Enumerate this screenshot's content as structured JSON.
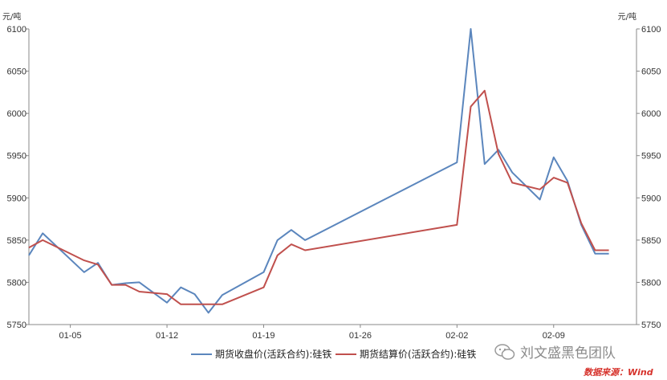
{
  "chart_data": {
    "type": "line",
    "ylabel_left": "元/吨",
    "ylabel_right": "元/吨",
    "ylim": [
      5750,
      6100
    ],
    "yticks": [
      5750,
      5800,
      5850,
      5900,
      5950,
      6000,
      6050,
      6100
    ],
    "x_tick_labels": [
      "01-05",
      "01-12",
      "01-19",
      "01-26",
      "02-02",
      "02-09"
    ],
    "x_tick_positions": [
      5,
      12,
      19,
      26,
      33,
      40
    ],
    "xlim": [
      2,
      46
    ],
    "grid": false,
    "legend_position": "bottom",
    "series": [
      {
        "name": "期货收盘价(活跃合约):硅铁",
        "color": "#5b86bd",
        "x": [
          2,
          3,
          6,
          7,
          8,
          9,
          10,
          12,
          13,
          14,
          15,
          16,
          19,
          20,
          21,
          22,
          33,
          34,
          35,
          36,
          37,
          39,
          40,
          41,
          42,
          43,
          44
        ],
        "y": [
          5832,
          5858,
          5812,
          5823,
          5797,
          5799,
          5800,
          5776,
          5794,
          5786,
          5764,
          5785,
          5812,
          5850,
          5862,
          5850,
          5942,
          6100,
          5940,
          5957,
          5930,
          5898,
          5948,
          5920,
          5868,
          5834,
          5834
        ]
      },
      {
        "name": "期货结算价(活跃合约):硅铁",
        "color": "#c0504d",
        "x": [
          2,
          3,
          6,
          7,
          8,
          9,
          10,
          12,
          13,
          14,
          15,
          16,
          19,
          20,
          21,
          22,
          33,
          34,
          35,
          36,
          37,
          39,
          40,
          41,
          42,
          43,
          44
        ],
        "y": [
          5841,
          5850,
          5826,
          5821,
          5797,
          5797,
          5789,
          5786,
          5774,
          5774,
          5774,
          5774,
          5794,
          5832,
          5845,
          5838,
          5868,
          6008,
          6027,
          5952,
          5918,
          5910,
          5924,
          5918,
          5870,
          5838,
          5838
        ]
      }
    ]
  },
  "watermark": {
    "text": "刘文盛黑色团队",
    "icon": "wechat-icon"
  },
  "source": {
    "text": "数据来源：Wind"
  }
}
